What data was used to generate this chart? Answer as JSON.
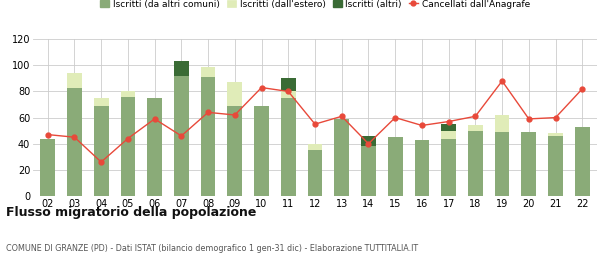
{
  "years": [
    "02",
    "03",
    "04",
    "05",
    "06",
    "07",
    "08",
    "09",
    "10",
    "11",
    "12",
    "13",
    "14",
    "15",
    "16",
    "17",
    "18",
    "19",
    "20",
    "21",
    "22"
  ],
  "iscritti_comuni": [
    44,
    83,
    69,
    76,
    75,
    92,
    91,
    69,
    69,
    75,
    35,
    59,
    38,
    45,
    43,
    44,
    50,
    49,
    49,
    46,
    53
  ],
  "iscritti_estero": [
    0,
    11,
    6,
    4,
    0,
    0,
    8,
    18,
    0,
    5,
    5,
    0,
    0,
    0,
    0,
    6,
    4,
    13,
    0,
    2,
    0
  ],
  "iscritti_altri": [
    0,
    0,
    0,
    0,
    0,
    11,
    0,
    0,
    0,
    10,
    0,
    0,
    8,
    0,
    0,
    5,
    0,
    0,
    0,
    0,
    0
  ],
  "cancellati": [
    47,
    45,
    26,
    44,
    59,
    46,
    64,
    62,
    83,
    80,
    55,
    61,
    40,
    60,
    54,
    57,
    61,
    88,
    59,
    60,
    82
  ],
  "color_comuni": "#8aab78",
  "color_estero": "#e0ecb8",
  "color_altri": "#3a6b35",
  "color_cancellati": "#e8493a",
  "ylim": [
    0,
    120
  ],
  "yticks": [
    0,
    20,
    40,
    60,
    80,
    100,
    120
  ],
  "title": "Flusso migratorio della popolazione",
  "subtitle": "COMUNE DI GRANZE (PD) - Dati ISTAT (bilancio demografico 1 gen-31 dic) - Elaborazione TUTTITALIA.IT",
  "legend_labels": [
    "Iscritti (da altri comuni)",
    "Iscritti (dall'estero)",
    "Iscritti (altri)",
    "Cancellati dall'Anagrafe"
  ],
  "bg_color": "#ffffff",
  "grid_color": "#cccccc"
}
